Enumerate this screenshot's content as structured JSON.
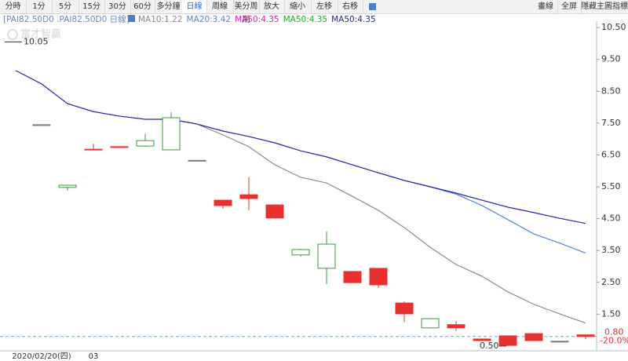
{
  "toolbar": {
    "left": [
      "分時",
      "1分",
      "5分",
      "15分",
      "30分",
      "60分",
      "多分鐘",
      "日線",
      "周線",
      "美分周期",
      "放大",
      "縮小",
      "左移",
      "右移"
    ],
    "active": "日線",
    "right": [
      "畫線",
      "全屏",
      "隱藏主圖指標"
    ]
  },
  "chart_data": {
    "type": "candlestick",
    "symbol": "[PAI82.50D0 .PAI82.50D0 日線]",
    "watermark": "富才智贏",
    "categories": [
      null,
      "2020/02/20(四)",
      null,
      "03",
      null,
      null,
      null,
      null,
      null,
      null,
      null,
      null,
      null,
      null,
      null,
      null,
      null,
      null,
      null,
      null,
      null,
      null,
      null
    ],
    "open": [
      null,
      7.45,
      5.48,
      6.68,
      6.76,
      6.78,
      6.66,
      6.33,
      5.08,
      5.25,
      4.93,
      3.36,
      2.94,
      2.84,
      2.94,
      1.85,
      1.07,
      1.17,
      0.72,
      0.82,
      0.89,
      0.65,
      0.85
    ],
    "high": [
      null,
      7.45,
      5.56,
      6.85,
      6.76,
      7.17,
      7.84,
      6.33,
      5.08,
      5.8,
      4.93,
      3.55,
      4.1,
      2.84,
      2.94,
      1.9,
      1.38,
      1.29,
      0.72,
      0.82,
      0.89,
      0.65,
      0.85
    ],
    "low": [
      null,
      7.45,
      5.38,
      6.67,
      6.75,
      6.75,
      6.66,
      6.33,
      4.81,
      4.76,
      4.5,
      3.31,
      2.45,
      2.48,
      2.32,
      1.26,
      1.07,
      0.97,
      0.66,
      0.5,
      0.67,
      0.65,
      0.72
    ],
    "close": [
      null,
      7.45,
      5.55,
      6.67,
      6.75,
      6.95,
      7.67,
      6.33,
      4.91,
      5.13,
      4.52,
      3.53,
      3.7,
      2.49,
      2.42,
      1.51,
      1.36,
      1.07,
      0.67,
      0.52,
      0.67,
      0.65,
      0.8
    ],
    "up_color": "#3a9a3a",
    "down_color": "#e8302e",
    "flat_color": "#777777",
    "series": [
      {
        "name": "MA10:1.22",
        "color": "#8a8a8a",
        "values": [
          null,
          null,
          null,
          null,
          null,
          null,
          7.62,
          7.47,
          7.13,
          6.76,
          6.19,
          5.8,
          5.62,
          5.2,
          4.76,
          4.22,
          3.6,
          3.06,
          2.69,
          2.2,
          1.81,
          1.51,
          1.22
        ]
      },
      {
        "name": "MA20:3.42",
        "color": "#4f86d6",
        "values": [
          null,
          null,
          null,
          null,
          null,
          null,
          null,
          null,
          null,
          null,
          null,
          null,
          null,
          null,
          5.94,
          5.7,
          5.5,
          5.27,
          4.91,
          4.47,
          4.02,
          3.73,
          3.42
        ]
      },
      {
        "name": "MA50:4.35",
        "color": "#e020c0"
      },
      {
        "name": "MA50:4.35",
        "color": "#20b020"
      },
      {
        "name": "MA50:4.35",
        "color": "#2424a8",
        "values": [
          9.15,
          8.73,
          8.11,
          7.86,
          7.72,
          7.62,
          7.62,
          7.47,
          7.25,
          7.08,
          6.88,
          6.63,
          6.44,
          6.19,
          5.94,
          5.7,
          5.5,
          5.3,
          5.08,
          4.86,
          4.69,
          4.51,
          4.35
        ]
      }
    ],
    "ylim": [
      0.35,
      10.7
    ],
    "yticks": [
      {
        "value": 1.5,
        "label": "1.50"
      },
      {
        "value": 2.5,
        "label": "2.50"
      },
      {
        "value": 3.5,
        "label": "3.50"
      },
      {
        "value": 4.5,
        "label": "4.50"
      },
      {
        "value": 5.5,
        "label": "5.50"
      },
      {
        "value": 6.5,
        "label": "6.50"
      },
      {
        "value": 7.5,
        "label": "7.50"
      },
      {
        "value": 8.5,
        "label": "8.50"
      },
      {
        "value": 9.5,
        "label": "9.50"
      },
      {
        "value": 10.5,
        "label": "10.50"
      }
    ],
    "last_price": {
      "value": 0.8,
      "label": "0.80"
    },
    "change_label": "-20.0%",
    "high_marker": {
      "value": 10.05,
      "label": "10.05"
    },
    "low_marker": {
      "value": 0.5,
      "label": "0.50"
    }
  }
}
